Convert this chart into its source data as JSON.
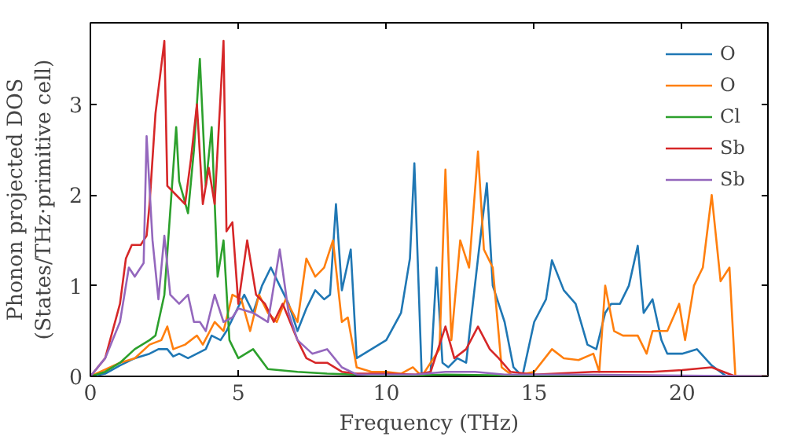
{
  "chart_data": {
    "type": "line",
    "xlabel": "Frequency (THz)",
    "ylabel": "Phonon projected DOS\n(States/THz·primitive cell)",
    "xlim": [
      0,
      22.9
    ],
    "ylim": [
      0,
      3.9
    ],
    "xticks": [
      0,
      5,
      10,
      15,
      20
    ],
    "yticks": [
      0,
      1,
      2,
      3
    ],
    "grid": false,
    "legend": "top right",
    "marker": "none",
    "line_style": "solid",
    "series": [
      {
        "name": "O",
        "color": "#1f77b4",
        "x": [
          0,
          0.5,
          1,
          1.5,
          2,
          2.3,
          2.6,
          2.8,
          3.0,
          3.3,
          3.6,
          3.9,
          4.1,
          4.4,
          4.6,
          4.9,
          5.2,
          5.5,
          5.8,
          6.1,
          6.4,
          6.7,
          7.0,
          7.3,
          7.6,
          7.9,
          8.1,
          8.3,
          8.5,
          8.8,
          9.0,
          9.5,
          10.0,
          10.5,
          10.8,
          10.95,
          11.2,
          11.5,
          11.7,
          11.9,
          12.1,
          12.4,
          12.7,
          13.1,
          13.4,
          13.6,
          14.0,
          14.3,
          14.6,
          15.0,
          15.4,
          15.6,
          16.0,
          16.4,
          16.8,
          17.1,
          17.4,
          17.6,
          17.9,
          18.2,
          18.5,
          18.7,
          19.0,
          19.3,
          19.5,
          20.0,
          20.5,
          21.0,
          21.5,
          21.8,
          22.9
        ],
        "values": [
          0,
          0.03,
          0.12,
          0.2,
          0.25,
          0.3,
          0.3,
          0.22,
          0.25,
          0.2,
          0.25,
          0.3,
          0.45,
          0.4,
          0.5,
          0.7,
          0.9,
          0.7,
          1.0,
          1.2,
          1.0,
          0.8,
          0.5,
          0.75,
          0.95,
          0.85,
          0.9,
          1.9,
          0.95,
          1.4,
          0.2,
          0.3,
          0.4,
          0.7,
          1.3,
          2.35,
          0,
          0.05,
          1.2,
          0.15,
          0.1,
          0.2,
          0.15,
          1.3,
          2.13,
          1.0,
          0.6,
          0.1,
          0,
          0.6,
          0.85,
          1.28,
          0.95,
          0.8,
          0.35,
          0.3,
          0.7,
          0.8,
          0.8,
          1.0,
          1.44,
          0.7,
          0.85,
          0.4,
          0.25,
          0.25,
          0.3,
          0.12,
          0,
          0,
          0
        ]
      },
      {
        "name": "O",
        "color": "#ff7f0e",
        "x": [
          0,
          1,
          1.5,
          2,
          2.4,
          2.6,
          2.8,
          3.2,
          3.6,
          3.8,
          4.2,
          4.5,
          4.8,
          5.1,
          5.4,
          5.7,
          6.0,
          6.3,
          6.6,
          7.0,
          7.3,
          7.6,
          7.9,
          8.2,
          8.5,
          8.7,
          9.0,
          9.5,
          10,
          10.5,
          10.9,
          11.2,
          11.8,
          12.0,
          12.2,
          12.5,
          12.8,
          13.1,
          13.3,
          13.6,
          13.9,
          14.3,
          15.0,
          15.6,
          16.0,
          16.5,
          17.0,
          17.2,
          17.4,
          17.7,
          18.0,
          18.5,
          18.8,
          19.0,
          19.5,
          19.9,
          20.1,
          20.4,
          20.7,
          21.0,
          21.3,
          21.6,
          21.8,
          22.9
        ],
        "values": [
          0,
          0.15,
          0.2,
          0.35,
          0.4,
          0.55,
          0.3,
          0.35,
          0.45,
          0.35,
          0.6,
          0.5,
          0.9,
          0.85,
          0.5,
          0.9,
          0.7,
          0.6,
          0.85,
          0.6,
          1.3,
          1.1,
          1.2,
          1.5,
          0.6,
          0.65,
          0.1,
          0.05,
          0.05,
          0.03,
          0.1,
          0,
          0.3,
          2.28,
          0.4,
          1.5,
          1.2,
          2.48,
          1.4,
          1.2,
          0.1,
          0,
          0.05,
          0.3,
          0.2,
          0.18,
          0.25,
          0.05,
          1.0,
          0.5,
          0.45,
          0.45,
          0.25,
          0.5,
          0.5,
          0.8,
          0.4,
          1.0,
          1.2,
          2.0,
          1.05,
          1.2,
          0,
          0
        ]
      },
      {
        "name": "Cl",
        "color": "#2ca02c",
        "x": [
          0,
          0.5,
          1,
          1.5,
          2,
          2.2,
          2.5,
          2.9,
          3.0,
          3.3,
          3.5,
          3.7,
          3.9,
          4.1,
          4.3,
          4.5,
          4.7,
          5.0,
          5.5,
          6.0,
          7.0,
          8,
          9,
          10,
          12,
          14,
          22.9
        ],
        "values": [
          0,
          0.05,
          0.15,
          0.3,
          0.4,
          0.45,
          0.9,
          2.75,
          2.15,
          1.8,
          2.5,
          3.5,
          2.1,
          2.75,
          1.1,
          1.5,
          0.4,
          0.2,
          0.3,
          0.08,
          0.05,
          0.03,
          0.02,
          null,
          0.02,
          0.01,
          0
        ]
      },
      {
        "name": "Sb",
        "color": "#d62728",
        "x": [
          0,
          0.5,
          1,
          1.2,
          1.4,
          1.7,
          1.9,
          2.0,
          2.2,
          2.5,
          2.6,
          2.9,
          3.2,
          3.4,
          3.6,
          3.8,
          4.0,
          4.2,
          4.5,
          4.6,
          4.8,
          5.0,
          5.3,
          5.6,
          5.9,
          6.2,
          6.5,
          7.0,
          7.3,
          7.6,
          8,
          8.5,
          9,
          10,
          11,
          11.5,
          12.0,
          12.3,
          12.7,
          13.1,
          13.5,
          13.8,
          14.2,
          15,
          17,
          19,
          20,
          21,
          21.8,
          22.9
        ],
        "values": [
          0,
          0.2,
          0.8,
          1.3,
          1.45,
          1.45,
          1.55,
          1.9,
          2.9,
          3.7,
          2.1,
          2.0,
          1.9,
          2.4,
          3.0,
          1.9,
          2.3,
          1.9,
          3.7,
          1.6,
          1.7,
          0.8,
          1.5,
          0.9,
          0.8,
          0.6,
          0.8,
          0.4,
          0.2,
          0.15,
          0.15,
          0.05,
          0.03,
          0.03,
          0.02,
          0.05,
          0.55,
          0.2,
          0.3,
          0.55,
          0.3,
          0.2,
          0.05,
          0.02,
          0.05,
          0.05,
          0.07,
          0.1,
          0,
          0
        ]
      },
      {
        "name": "Sb",
        "color": "#9467bd",
        "x": [
          0,
          0.5,
          1,
          1.3,
          1.5,
          1.7,
          1.8,
          1.9,
          2.1,
          2.3,
          2.5,
          2.7,
          3.0,
          3.3,
          3.5,
          3.7,
          3.9,
          4.2,
          4.5,
          4.8,
          5.0,
          5.5,
          6.0,
          6.4,
          6.7,
          7.0,
          7.5,
          8.0,
          8.5,
          9,
          11,
          12,
          13,
          14,
          16,
          22.9
        ],
        "values": [
          0,
          0.2,
          0.6,
          1.2,
          1.1,
          1.2,
          1.25,
          2.65,
          1.5,
          0.85,
          1.55,
          0.9,
          0.8,
          0.9,
          0.6,
          0.6,
          0.5,
          0.9,
          0.6,
          0.65,
          0.75,
          0.7,
          0.6,
          1.4,
          0.7,
          0.4,
          0.25,
          0.3,
          0.1,
          0.02,
          0.02,
          0.05,
          0.05,
          0.02,
          0.02,
          0
        ]
      }
    ]
  }
}
